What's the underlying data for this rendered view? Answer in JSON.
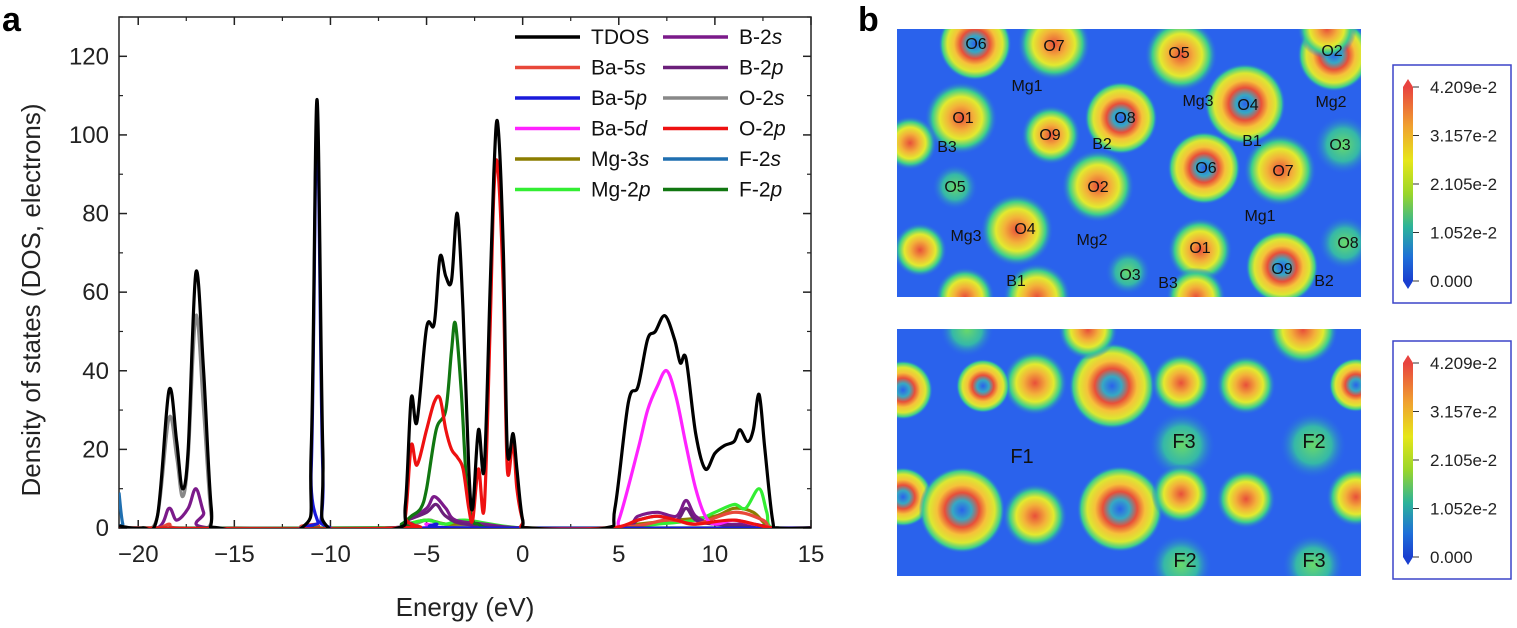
{
  "panels": {
    "a": "a",
    "b": "b"
  },
  "chart_data": {
    "type": "line",
    "xlabel": "Energy (eV)",
    "ylabel": "Density of states (DOS, electrons)",
    "xlim": [
      -21,
      15
    ],
    "ylim": [
      0,
      130
    ],
    "xticks": [
      -20,
      -15,
      -10,
      -5,
      0,
      5,
      10,
      15
    ],
    "yticks": [
      0,
      20,
      40,
      60,
      80,
      100,
      120
    ],
    "series": [
      {
        "name": "TDOS",
        "label": "TDOS",
        "italic": "",
        "color": "#000000",
        "points": [
          [
            -21,
            0.5
          ],
          [
            -19.8,
            0
          ],
          [
            -19,
            3
          ],
          [
            -18.4,
            35
          ],
          [
            -18.0,
            22
          ],
          [
            -17.7,
            10
          ],
          [
            -17.4,
            20
          ],
          [
            -17.0,
            65
          ],
          [
            -16.6,
            40
          ],
          [
            -16.2,
            5
          ],
          [
            -15.8,
            0
          ],
          [
            -11.5,
            0
          ],
          [
            -11.0,
            20
          ],
          [
            -10.7,
            109
          ],
          [
            -10.4,
            20
          ],
          [
            -10.1,
            0
          ],
          [
            -6.5,
            0
          ],
          [
            -6.1,
            6
          ],
          [
            -5.8,
            33
          ],
          [
            -5.5,
            27
          ],
          [
            -5.0,
            51
          ],
          [
            -4.6,
            52
          ],
          [
            -4.3,
            69
          ],
          [
            -4.0,
            64
          ],
          [
            -3.7,
            63
          ],
          [
            -3.4,
            80
          ],
          [
            -3.1,
            55
          ],
          [
            -2.8,
            15
          ],
          [
            -2.6,
            5
          ],
          [
            -2.3,
            25
          ],
          [
            -2.0,
            15
          ],
          [
            -1.7,
            60
          ],
          [
            -1.5,
            90
          ],
          [
            -1.3,
            103
          ],
          [
            -1.0,
            70
          ],
          [
            -0.8,
            20
          ],
          [
            -0.5,
            24
          ],
          [
            -0.3,
            15
          ],
          [
            0,
            2
          ],
          [
            0.4,
            0
          ],
          [
            4.3,
            0
          ],
          [
            4.8,
            5
          ],
          [
            5.5,
            32
          ],
          [
            6.0,
            36
          ],
          [
            6.5,
            48
          ],
          [
            6.9,
            50
          ],
          [
            7.4,
            54
          ],
          [
            7.9,
            48
          ],
          [
            8.2,
            42
          ],
          [
            8.5,
            43
          ],
          [
            9.0,
            24
          ],
          [
            9.5,
            15
          ],
          [
            10.0,
            19
          ],
          [
            10.5,
            21
          ],
          [
            11.0,
            22
          ],
          [
            11.3,
            25
          ],
          [
            11.7,
            22
          ],
          [
            12.0,
            25
          ],
          [
            12.3,
            34
          ],
          [
            12.6,
            20
          ],
          [
            13.0,
            2
          ],
          [
            13.3,
            0
          ],
          [
            15,
            0
          ]
        ]
      },
      {
        "name": "Ba-5s",
        "label": "Ba-5",
        "italic": "s",
        "color": "#e8483a",
        "points": [
          [
            -21,
            0
          ],
          [
            -19,
            0
          ],
          [
            -18.4,
            1
          ],
          [
            -18,
            0
          ],
          [
            -15,
            0
          ],
          [
            -11,
            0
          ],
          [
            -10.7,
            1
          ],
          [
            -10.4,
            0
          ],
          [
            4,
            0
          ],
          [
            7.5,
            2
          ],
          [
            9,
            1
          ],
          [
            11,
            4
          ],
          [
            12.5,
            2
          ],
          [
            13,
            0
          ],
          [
            15,
            0
          ]
        ]
      },
      {
        "name": "Ba-5p",
        "label": "Ba-5",
        "italic": "p",
        "color": "#1a1adb",
        "points": [
          [
            -21,
            0
          ],
          [
            -11.5,
            0
          ],
          [
            -11.0,
            15
          ],
          [
            -10.7,
            104
          ],
          [
            -10.4,
            15
          ],
          [
            -10.0,
            0
          ],
          [
            -5,
            0
          ],
          [
            -4.5,
            1
          ],
          [
            -3,
            0
          ],
          [
            15,
            0
          ]
        ]
      },
      {
        "name": "Ba-5d",
        "label": "Ba-5",
        "italic": "d",
        "color": "#ff22ff",
        "points": [
          [
            -21,
            0
          ],
          [
            -6,
            0
          ],
          [
            -5,
            1
          ],
          [
            -4,
            0
          ],
          [
            4.5,
            0
          ],
          [
            5,
            2
          ],
          [
            6,
            20
          ],
          [
            6.5,
            30
          ],
          [
            7,
            36
          ],
          [
            7.5,
            40
          ],
          [
            8,
            33
          ],
          [
            8.5,
            21
          ],
          [
            9,
            10
          ],
          [
            9.5,
            3
          ],
          [
            10,
            1
          ],
          [
            11,
            2
          ],
          [
            12,
            1
          ],
          [
            13,
            0
          ],
          [
            15,
            0
          ]
        ]
      },
      {
        "name": "Mg-3s",
        "label": "Mg-3",
        "italic": "s",
        "color": "#8b7d00",
        "points": [
          [
            -21,
            0
          ],
          [
            -7,
            0
          ],
          [
            -6,
            1
          ],
          [
            -5,
            2
          ],
          [
            -4,
            1
          ],
          [
            -3,
            1
          ],
          [
            0,
            0
          ],
          [
            4.5,
            0
          ],
          [
            6,
            1
          ],
          [
            8,
            2
          ],
          [
            10,
            3
          ],
          [
            11,
            5
          ],
          [
            12,
            4
          ],
          [
            13,
            0
          ],
          [
            15,
            0
          ]
        ]
      },
      {
        "name": "Mg-2p",
        "label": "Mg-2",
        "italic": "p",
        "color": "#33ee33",
        "points": [
          [
            -21,
            0
          ],
          [
            -7,
            0
          ],
          [
            -6,
            1
          ],
          [
            -5,
            2
          ],
          [
            -4,
            1
          ],
          [
            -3,
            2
          ],
          [
            0,
            0
          ],
          [
            4.5,
            0
          ],
          [
            7,
            1
          ],
          [
            9,
            2
          ],
          [
            10,
            4
          ],
          [
            11,
            6
          ],
          [
            11.6,
            5
          ],
          [
            12.3,
            10
          ],
          [
            12.7,
            4
          ],
          [
            13,
            0
          ],
          [
            15,
            0
          ]
        ]
      },
      {
        "name": "B-2s",
        "label": "B-2",
        "italic": "s",
        "color": "#7b1a8a",
        "points": [
          [
            -21,
            0
          ],
          [
            -19,
            0
          ],
          [
            -18.4,
            5
          ],
          [
            -18,
            2
          ],
          [
            -17.4,
            5
          ],
          [
            -17.0,
            10
          ],
          [
            -16.6,
            4
          ],
          [
            -16.2,
            0
          ],
          [
            -7,
            0
          ],
          [
            -6,
            2
          ],
          [
            -5,
            5
          ],
          [
            -4.6,
            8
          ],
          [
            -4,
            5
          ],
          [
            -3.5,
            2
          ],
          [
            -2,
            1
          ],
          [
            0,
            0
          ],
          [
            5,
            0
          ],
          [
            6,
            3
          ],
          [
            7,
            4
          ],
          [
            8,
            3
          ],
          [
            8.5,
            7
          ],
          [
            9,
            3
          ],
          [
            10,
            1
          ],
          [
            12,
            1
          ],
          [
            13,
            0
          ],
          [
            15,
            0
          ]
        ]
      },
      {
        "name": "B-2p",
        "label": "B-2",
        "italic": "p",
        "color": "#6b1f7a",
        "points": [
          [
            -21,
            0
          ],
          [
            -7,
            0
          ],
          [
            -6,
            2
          ],
          [
            -5,
            4
          ],
          [
            -4.5,
            6
          ],
          [
            -4,
            3
          ],
          [
            -3,
            1
          ],
          [
            0,
            0
          ],
          [
            5,
            0
          ],
          [
            6,
            2
          ],
          [
            7,
            3
          ],
          [
            8,
            2
          ],
          [
            8.5,
            5
          ],
          [
            9,
            2
          ],
          [
            10,
            1
          ],
          [
            13,
            0
          ],
          [
            15,
            0
          ]
        ]
      },
      {
        "name": "O-2s",
        "label": "O-2",
        "italic": "s",
        "color": "#888888",
        "points": [
          [
            -21,
            0
          ],
          [
            -19.8,
            0
          ],
          [
            -19,
            3
          ],
          [
            -18.4,
            28
          ],
          [
            -18.0,
            18
          ],
          [
            -17.7,
            8
          ],
          [
            -17.4,
            18
          ],
          [
            -17.0,
            54
          ],
          [
            -16.6,
            30
          ],
          [
            -16.2,
            3
          ],
          [
            -15.8,
            0
          ],
          [
            -7,
            0
          ],
          [
            -5,
            2
          ],
          [
            -4,
            1
          ],
          [
            0,
            0
          ],
          [
            15,
            0
          ]
        ]
      },
      {
        "name": "O-2p",
        "label": "O-2",
        "italic": "p",
        "color": "#ee1111",
        "points": [
          [
            -21,
            0
          ],
          [
            -6.5,
            0
          ],
          [
            -6.1,
            3
          ],
          [
            -5.8,
            21
          ],
          [
            -5.5,
            16
          ],
          [
            -5.0,
            25
          ],
          [
            -4.6,
            32
          ],
          [
            -4.3,
            33
          ],
          [
            -4.0,
            25
          ],
          [
            -3.7,
            20
          ],
          [
            -3.4,
            18
          ],
          [
            -3.1,
            15
          ],
          [
            -2.8,
            5
          ],
          [
            -2.6,
            2
          ],
          [
            -2.3,
            15
          ],
          [
            -2.0,
            5
          ],
          [
            -1.7,
            50
          ],
          [
            -1.5,
            85
          ],
          [
            -1.3,
            92
          ],
          [
            -1.0,
            60
          ],
          [
            -0.8,
            15
          ],
          [
            -0.5,
            22
          ],
          [
            -0.3,
            10
          ],
          [
            0,
            2
          ],
          [
            0.3,
            0
          ],
          [
            4.5,
            0
          ],
          [
            6,
            2
          ],
          [
            7,
            3
          ],
          [
            8,
            2
          ],
          [
            9,
            1
          ],
          [
            11,
            2
          ],
          [
            13,
            0
          ],
          [
            15,
            0
          ]
        ]
      },
      {
        "name": "F-2s",
        "label": "F-2",
        "italic": "s",
        "color": "#1f6fb0",
        "points": [
          [
            -21,
            9
          ],
          [
            -20.8,
            1
          ],
          [
            -20.5,
            0
          ],
          [
            15,
            0
          ]
        ]
      },
      {
        "name": "F-2p",
        "label": "F-2",
        "italic": "p",
        "color": "#117711",
        "points": [
          [
            -21,
            0
          ],
          [
            -7,
            0
          ],
          [
            -6.3,
            1
          ],
          [
            -5.8,
            3
          ],
          [
            -5.3,
            5
          ],
          [
            -5.0,
            10
          ],
          [
            -4.5,
            25
          ],
          [
            -4.0,
            30
          ],
          [
            -3.7,
            45
          ],
          [
            -3.5,
            52
          ],
          [
            -3.2,
            35
          ],
          [
            -2.9,
            10
          ],
          [
            -2.6,
            2
          ],
          [
            -2.3,
            1
          ],
          [
            -1.8,
            0
          ],
          [
            0,
            0
          ],
          [
            15,
            0
          ]
        ]
      }
    ]
  },
  "panel_b": {
    "top_map": {
      "labels": [
        "O6",
        "O7",
        "O5",
        "O2",
        "Mg1",
        "Mg3",
        "O4",
        "Mg2",
        "O1",
        "O8",
        "O9",
        "B2",
        "B1",
        "O3",
        "B3",
        "O6",
        "O7",
        "O5",
        "O2",
        "Mg1",
        "Mg3",
        "O4",
        "Mg2",
        "O1",
        "O8",
        "O3",
        "B3",
        "O9",
        "B2",
        "B1"
      ]
    },
    "bottom_map": {
      "labels": [
        "F1",
        "F3",
        "F2",
        "F2",
        "F3"
      ]
    },
    "colorbar": {
      "ticks": [
        "4.209e-2",
        "3.157e-2",
        "2.105e-2",
        "1.052e-2",
        "0.000"
      ],
      "colors": [
        "#e8433f",
        "#f0a030",
        "#e6e619",
        "#9ad62a",
        "#2cb39a",
        "#1f6ed8",
        "#1a3fd0"
      ]
    },
    "map_colors": {
      "background": "#2a62ec",
      "halo": "#2fc2a2",
      "mid": "#d8e632",
      "peak": "#e84f3a"
    }
  }
}
